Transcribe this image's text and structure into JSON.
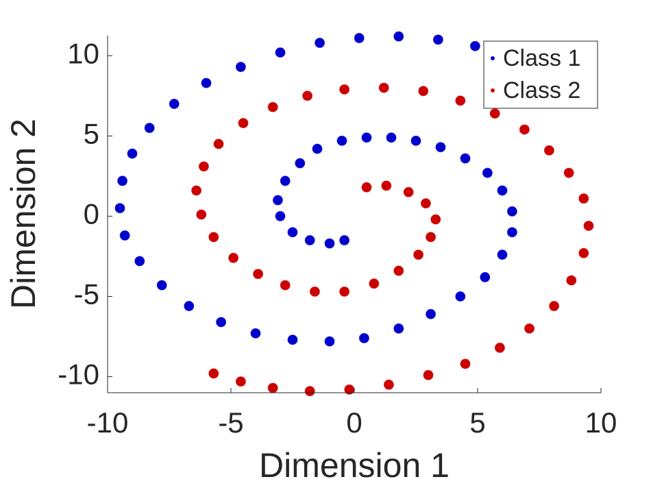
{
  "chart_data": {
    "type": "scatter",
    "x_label": "Dimension 1",
    "y_label": "Dimension 2",
    "xlim": [
      -10,
      10
    ],
    "ylim": [
      -11,
      11.25
    ],
    "xticks": [
      -10,
      -5,
      0,
      5,
      10
    ],
    "yticks": [
      -10,
      -5,
      0,
      5,
      10
    ],
    "legend": "upper right",
    "series": [
      {
        "name": "Class 1",
        "color": "#0000cc",
        "x": [
          -0.4,
          -1,
          -1.8,
          -2.5,
          -3,
          -3.1,
          -2.8,
          -2.2,
          -1.5,
          -0.5,
          0.5,
          1.5,
          2.5,
          3.5,
          4.5,
          5.4,
          6,
          6.4,
          6.4,
          6,
          5.3,
          4.3,
          3.1,
          1.8,
          0.4,
          -1,
          -2.5,
          -4,
          -5.4,
          -6.7,
          -7.8,
          -8.7,
          -9.3,
          -9.5,
          -9.4,
          -9,
          -8.3,
          -7.3,
          -6,
          -4.6,
          -3,
          -1.4,
          0.2,
          1.8,
          3.4,
          4.9
        ],
        "values": [
          -1.5,
          -1.7,
          -1.5,
          -1,
          0,
          1,
          2.2,
          3.3,
          4.2,
          4.7,
          4.9,
          4.9,
          4.7,
          4.3,
          3.6,
          2.7,
          1.6,
          0.3,
          -1,
          -2.4,
          -3.8,
          -5,
          -6.1,
          -7,
          -7.6,
          -7.8,
          -7.7,
          -7.3,
          -6.6,
          -5.6,
          -4.3,
          -2.8,
          -1.2,
          0.5,
          2.2,
          3.9,
          5.5,
          7,
          8.3,
          9.3,
          10.2,
          10.8,
          11.1,
          11.2,
          11,
          10.6
        ]
      },
      {
        "name": "Class 2",
        "color": "#cc0000",
        "x": [
          0.5,
          1.3,
          2.2,
          2.9,
          3.3,
          3.1,
          2.6,
          1.8,
          0.8,
          -0.4,
          -1.6,
          -2.8,
          -3.9,
          -4.9,
          -5.7,
          -6.2,
          -6.4,
          -6.1,
          -5.5,
          -4.5,
          -3.3,
          -1.9,
          -0.4,
          1.2,
          2.8,
          4.3,
          5.7,
          6.9,
          7.9,
          8.7,
          9.3,
          9.5,
          9.3,
          8.8,
          8.1,
          7.1,
          5.9,
          4.5,
          3,
          1.4,
          -0.2,
          -1.8,
          -3.3,
          -4.6,
          -5.7
        ],
        "values": [
          1.8,
          1.9,
          1.5,
          0.8,
          -0.2,
          -1.3,
          -2.4,
          -3.4,
          -4.2,
          -4.7,
          -4.7,
          -4.3,
          -3.6,
          -2.6,
          -1.3,
          0.1,
          1.6,
          3.1,
          4.5,
          5.8,
          6.8,
          7.5,
          7.9,
          8,
          7.8,
          7.2,
          6.4,
          5.4,
          4.1,
          2.7,
          1.1,
          -0.6,
          -2.3,
          -4,
          -5.6,
          -7,
          -8.2,
          -9.2,
          -9.9,
          -10.5,
          -10.8,
          -10.9,
          -10.7,
          -10.3,
          -9.8
        ]
      }
    ]
  }
}
